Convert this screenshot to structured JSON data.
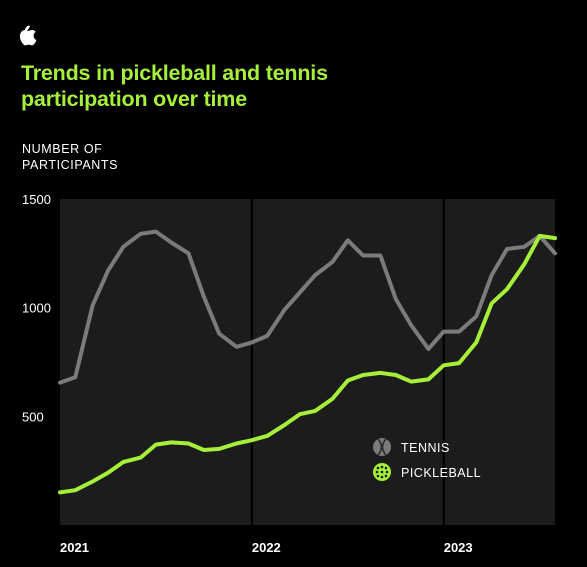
{
  "colors": {
    "accent": "#a6f03a",
    "tennis": "#7b7b7b",
    "plot_bg": "#1c1c1c",
    "background": "#000000"
  },
  "logo": {
    "icon": "apple-logo"
  },
  "title": "Trends in pickleball and tennis participation over time",
  "ylabel_lines": [
    "NUMBER OF",
    "PARTICIPANTS"
  ],
  "legend": [
    {
      "label": "TENNIS",
      "icon": "tennis-ball-icon"
    },
    {
      "label": "PICKLEBALL",
      "icon": "pickleball-icon"
    }
  ],
  "chart_data": {
    "type": "line",
    "title": "Trends in pickleball and tennis participation over time",
    "ylabel": "NUMBER OF PARTICIPANTS",
    "xlabel": "",
    "ylim": [
      0,
      1500
    ],
    "yticks": [
      500,
      1000,
      1500
    ],
    "xticks": [
      {
        "label": "2021",
        "value": 2021
      },
      {
        "label": "2022",
        "value": 2022
      },
      {
        "label": "2023",
        "value": 2023
      }
    ],
    "xlim": [
      2021.0,
      2023.58
    ],
    "grid": "vertical at year boundaries",
    "legend_position": "lower-right",
    "series": [
      {
        "name": "TENNIS",
        "x": [
          2021.0,
          2021.08,
          2021.17,
          2021.25,
          2021.33,
          2021.42,
          2021.5,
          2021.58,
          2021.67,
          2021.75,
          2021.83,
          2021.92,
          2022.0,
          2022.08,
          2022.17,
          2022.25,
          2022.33,
          2022.42,
          2022.5,
          2022.58,
          2022.67,
          2022.75,
          2022.83,
          2022.92,
          2023.0,
          2023.08,
          2023.17,
          2023.25,
          2023.33,
          2023.42,
          2023.5,
          2023.58
        ],
        "y": [
          655,
          680,
          1010,
          1170,
          1280,
          1340,
          1350,
          1300,
          1250,
          1050,
          880,
          820,
          840,
          870,
          990,
          1070,
          1150,
          1210,
          1310,
          1240,
          1240,
          1040,
          920,
          810,
          890,
          890,
          960,
          1150,
          1270,
          1280,
          1330,
          1250
        ]
      },
      {
        "name": "PICKLEBALL",
        "x": [
          2021.0,
          2021.08,
          2021.17,
          2021.25,
          2021.33,
          2021.42,
          2021.5,
          2021.58,
          2021.67,
          2021.75,
          2021.83,
          2021.92,
          2022.0,
          2022.08,
          2022.17,
          2022.25,
          2022.33,
          2022.42,
          2022.5,
          2022.58,
          2022.67,
          2022.75,
          2022.83,
          2022.92,
          2023.0,
          2023.08,
          2023.17,
          2023.25,
          2023.33,
          2023.42,
          2023.5,
          2023.58
        ],
        "y": [
          150,
          160,
          200,
          240,
          290,
          310,
          370,
          380,
          375,
          345,
          350,
          375,
          390,
          410,
          460,
          510,
          525,
          580,
          665,
          690,
          700,
          690,
          660,
          670,
          735,
          745,
          840,
          1020,
          1085,
          1200,
          1330,
          1320
        ]
      }
    ]
  }
}
